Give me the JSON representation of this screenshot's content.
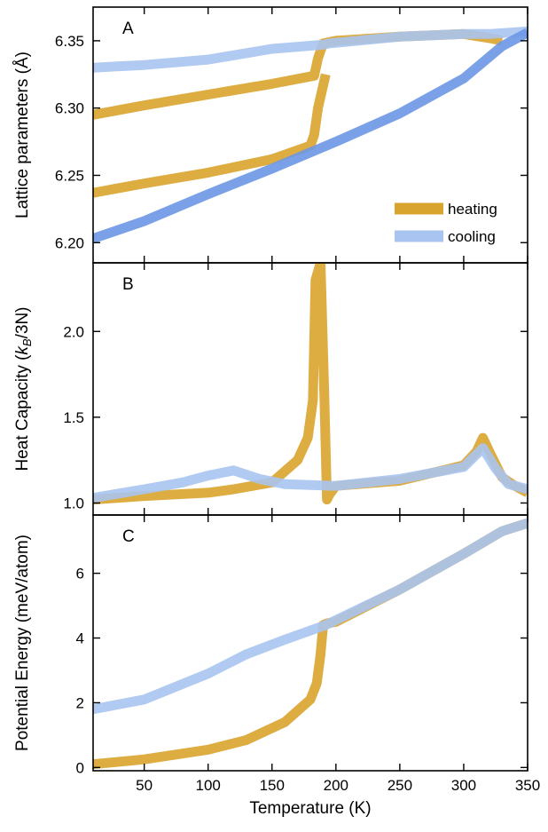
{
  "colors": {
    "heating": "#D9A42E",
    "cooling": "#A9C4F0",
    "cooling_dark": "#6C97E6",
    "overlap": "#8E9486"
  },
  "chart_data": [
    {
      "panel": "A",
      "type": "line",
      "ylabel": "Lattice parameters (Å)",
      "xlim": [
        10,
        350
      ],
      "ylim": [
        6.185,
        6.375
      ],
      "yticks": [
        "6.20",
        "6.25",
        "6.30",
        "6.35"
      ],
      "legend": {
        "position": "bottom-right",
        "entries": [
          "heating",
          "cooling"
        ]
      },
      "series": [
        {
          "name": "heating",
          "x": [
            10,
            50,
            100,
            150,
            183,
            186,
            190,
            200,
            250,
            300,
            320,
            330
          ],
          "y": [
            6.295,
            6.302,
            6.31,
            6.318,
            6.324,
            6.337,
            6.348,
            6.35,
            6.353,
            6.355,
            6.352,
            6.35
          ]
        },
        {
          "x": [
            10,
            50,
            100,
            150,
            180,
            183,
            186,
            192
          ],
          "y": [
            6.237,
            6.244,
            6.252,
            6.262,
            6.272,
            6.28,
            6.3,
            6.325
          ]
        },
        {
          "name": "cooling",
          "x": [
            10,
            50,
            100,
            150,
            190,
            195,
            250,
            300,
            320,
            335,
            350
          ],
          "y": [
            6.33,
            6.332,
            6.336,
            6.344,
            6.347,
            6.348,
            6.353,
            6.355,
            6.355,
            6.356,
            6.357
          ]
        },
        {
          "x": [
            10,
            50,
            100,
            150,
            200,
            250,
            300,
            330,
            350
          ],
          "y": [
            6.203,
            6.216,
            6.236,
            6.255,
            6.275,
            6.296,
            6.322,
            6.346,
            6.356
          ]
        }
      ]
    },
    {
      "panel": "B",
      "type": "line",
      "ylabel": "Heat Capacity (k_B/3N)",
      "xlim": [
        10,
        350
      ],
      "ylim": [
        0.93,
        2.4
      ],
      "yticks": [
        "1.0",
        "1.5",
        "2.0"
      ],
      "series": [
        {
          "name": "heating",
          "x": [
            10,
            50,
            100,
            120,
            150,
            170,
            178,
            182,
            184,
            188,
            191,
            193,
            195,
            200,
            250,
            300,
            310,
            315,
            320,
            330,
            340,
            350
          ],
          "y": [
            1.02,
            1.04,
            1.06,
            1.08,
            1.12,
            1.25,
            1.38,
            1.6,
            2.3,
            2.4,
            1.6,
            1.02,
            1.05,
            1.1,
            1.13,
            1.22,
            1.3,
            1.38,
            1.3,
            1.15,
            1.1,
            1.06
          ]
        },
        {
          "name": "cooling",
          "x": [
            10,
            50,
            80,
            100,
            120,
            140,
            160,
            200,
            250,
            300,
            315,
            325,
            335,
            350
          ],
          "y": [
            1.03,
            1.08,
            1.12,
            1.16,
            1.19,
            1.14,
            1.11,
            1.1,
            1.14,
            1.21,
            1.32,
            1.2,
            1.11,
            1.08
          ]
        }
      ]
    },
    {
      "panel": "C",
      "type": "line",
      "xlabel": "Temperature (K)",
      "ylabel": "Potential Energy (meV/atom)",
      "xlim": [
        10,
        350
      ],
      "ylim": [
        -0.1,
        7.8
      ],
      "xticks": [
        "50",
        "100",
        "150",
        "200",
        "250",
        "300",
        "350"
      ],
      "yticks": [
        "0",
        "2",
        "4",
        "6"
      ],
      "series": [
        {
          "name": "heating",
          "x": [
            10,
            50,
            100,
            130,
            160,
            180,
            185,
            188,
            190,
            193,
            200,
            250,
            300,
            330,
            350
          ],
          "y": [
            0.1,
            0.25,
            0.55,
            0.85,
            1.4,
            2.1,
            2.6,
            3.5,
            4.4,
            4.45,
            4.5,
            5.5,
            6.6,
            7.3,
            7.55
          ]
        },
        {
          "name": "cooling",
          "x": [
            10,
            50,
            100,
            130,
            160,
            192,
            250,
            300,
            330,
            350
          ],
          "y": [
            1.8,
            2.1,
            2.9,
            3.5,
            3.95,
            4.4,
            5.5,
            6.6,
            7.3,
            7.55
          ]
        }
      ]
    }
  ]
}
